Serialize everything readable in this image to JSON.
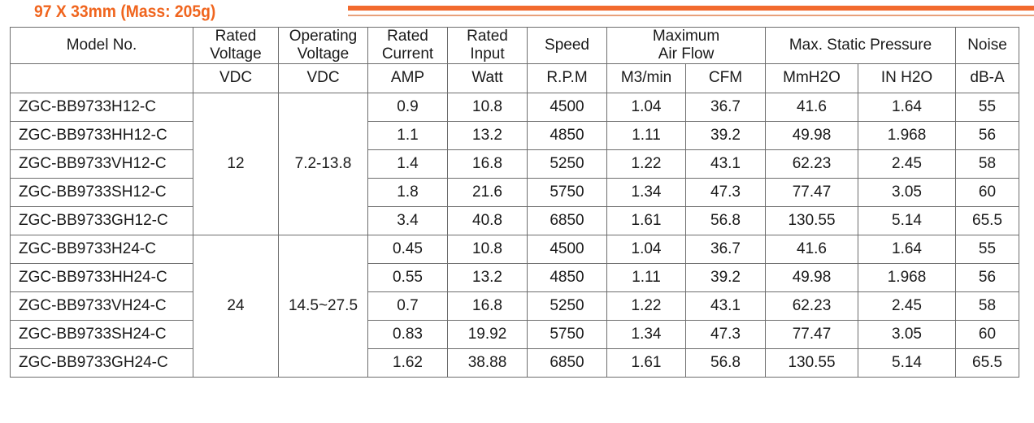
{
  "title": "97 X 33mm (Mass: 205g)",
  "headers": {
    "model": "Model No.",
    "rated_voltage": [
      "Rated",
      "Voltage"
    ],
    "operating_voltage": [
      "Operating",
      "Voltage"
    ],
    "rated_current": [
      "Rated",
      "Current"
    ],
    "rated_input": [
      "Rated",
      "Input"
    ],
    "speed": "Speed",
    "max_air_flow": [
      "Maximum",
      "Air Flow"
    ],
    "max_static_pressure": "Max. Static Pressure",
    "noise": "Noise"
  },
  "units": [
    "VDC",
    "VDC",
    "AMP",
    "Watt",
    "R.P.M",
    "M3/min",
    "CFM",
    "MmH2O",
    "IN H2O",
    "dB-A"
  ],
  "groups": [
    {
      "rated_voltage": "12",
      "operating_voltage": "7.2-13.8"
    },
    {
      "rated_voltage": "24",
      "operating_voltage": "14.5~27.5"
    }
  ],
  "rows": [
    {
      "model": "ZGC-BB9733H12-C",
      "current": "0.9",
      "input": "10.8",
      "rpm": "4500",
      "m3min": "1.04",
      "cfm": "36.7",
      "mmh2o": "41.6",
      "inh2o": "1.64",
      "noise": "55"
    },
    {
      "model": "ZGC-BB9733HH12-C",
      "current": "1.1",
      "input": "13.2",
      "rpm": "4850",
      "m3min": "1.11",
      "cfm": "39.2",
      "mmh2o": "49.98",
      "inh2o": "1.968",
      "noise": "56"
    },
    {
      "model": "ZGC-BB9733VH12-C",
      "current": "1.4",
      "input": "16.8",
      "rpm": "5250",
      "m3min": "1.22",
      "cfm": "43.1",
      "mmh2o": "62.23",
      "inh2o": "2.45",
      "noise": "58"
    },
    {
      "model": "ZGC-BB9733SH12-C",
      "current": "1.8",
      "input": "21.6",
      "rpm": "5750",
      "m3min": "1.34",
      "cfm": "47.3",
      "mmh2o": "77.47",
      "inh2o": "3.05",
      "noise": "60"
    },
    {
      "model": "ZGC-BB9733GH12-C",
      "current": "3.4",
      "input": "40.8",
      "rpm": "6850",
      "m3min": "1.61",
      "cfm": "56.8",
      "mmh2o": "130.55",
      "inh2o": "5.14",
      "noise": "65.5"
    },
    {
      "model": "ZGC-BB9733H24-C",
      "current": "0.45",
      "input": "10.8",
      "rpm": "4500",
      "m3min": "1.04",
      "cfm": "36.7",
      "mmh2o": "41.6",
      "inh2o": "1.64",
      "noise": "55"
    },
    {
      "model": "ZGC-BB9733HH24-C",
      "current": "0.55",
      "input": "13.2",
      "rpm": "4850",
      "m3min": "1.11",
      "cfm": "39.2",
      "mmh2o": "49.98",
      "inh2o": "1.968",
      "noise": "56"
    },
    {
      "model": "ZGC-BB9733VH24-C",
      "current": "0.7",
      "input": "16.8",
      "rpm": "5250",
      "m3min": "1.22",
      "cfm": "43.1",
      "mmh2o": "62.23",
      "inh2o": "2.45",
      "noise": "58"
    },
    {
      "model": "ZGC-BB9733SH24-C",
      "current": "0.83",
      "input": "19.92",
      "rpm": "5750",
      "m3min": "1.34",
      "cfm": "47.3",
      "mmh2o": "77.47",
      "inh2o": "3.05",
      "noise": "60"
    },
    {
      "model": "ZGC-BB9733GH24-C",
      "current": "1.62",
      "input": "38.88",
      "rpm": "6850",
      "m3min": "1.61",
      "cfm": "56.8",
      "mmh2o": "130.55",
      "inh2o": "5.14",
      "noise": "65.5"
    }
  ]
}
